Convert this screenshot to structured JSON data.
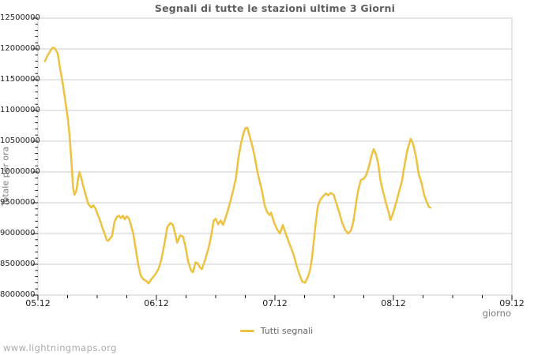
{
  "page": {
    "watermark": "www.lightningmaps.org"
  },
  "colors": {
    "line": "#edc240",
    "grid": "#cccccc",
    "tick": "#1a1a1a",
    "tick_label": "#222222",
    "title": "#5f5f5f",
    "axis_title": "#7a7a7a",
    "legend_text": "#666666",
    "watermark": "#aaaaaa"
  },
  "chart_data": {
    "type": "line",
    "title": "Segnali di tutte le stazioni ultime 3 Giorni",
    "xlabel": "giorno",
    "ylabel": "Totale per ora",
    "grid": "horizontal-only",
    "legend_position": "bottom-center",
    "xlim_hours": [
      0,
      96
    ],
    "ylim": [
      8000000,
      12500000
    ],
    "x_ticks": [
      {
        "t": 0,
        "label": "05.12"
      },
      {
        "t": 24,
        "label": "06.12"
      },
      {
        "t": 48,
        "label": "07.12"
      },
      {
        "t": 72,
        "label": "08.12"
      },
      {
        "t": 96,
        "label": "09.12"
      }
    ],
    "x_minor_step_hours": 6,
    "y_ticks": [
      8000000,
      8500000,
      9000000,
      9500000,
      10000000,
      10500000,
      11000000,
      11500000,
      12000000,
      12500000
    ],
    "y_minor_step": 100000,
    "series": [
      {
        "name": "Tutti segnali",
        "color": "#edc240",
        "points_t_hours_value": [
          [
            1.4,
            11800000
          ],
          [
            2,
            11900000
          ],
          [
            2.6,
            11980000
          ],
          [
            3,
            12020000
          ],
          [
            3.4,
            12010000
          ],
          [
            4,
            11930000
          ],
          [
            4.5,
            11680000
          ],
          [
            5,
            11450000
          ],
          [
            5.5,
            11180000
          ],
          [
            6,
            10900000
          ],
          [
            6.4,
            10600000
          ],
          [
            6.8,
            10150000
          ],
          [
            7.1,
            9750000
          ],
          [
            7.4,
            9630000
          ],
          [
            7.8,
            9700000
          ],
          [
            8.1,
            9870000
          ],
          [
            8.4,
            10000000
          ],
          [
            8.8,
            9900000
          ],
          [
            9.1,
            9790000
          ],
          [
            9.7,
            9620000
          ],
          [
            10.2,
            9480000
          ],
          [
            10.8,
            9420000
          ],
          [
            11.2,
            9460000
          ],
          [
            11.7,
            9400000
          ],
          [
            12.1,
            9310000
          ],
          [
            12.6,
            9210000
          ],
          [
            13.1,
            9080000
          ],
          [
            13.5,
            9000000
          ],
          [
            13.9,
            8900000
          ],
          [
            14.2,
            8880000
          ],
          [
            15,
            8960000
          ],
          [
            15.5,
            9190000
          ],
          [
            16,
            9270000
          ],
          [
            16.4,
            9290000
          ],
          [
            16.8,
            9250000
          ],
          [
            17.2,
            9290000
          ],
          [
            17.6,
            9230000
          ],
          [
            18,
            9280000
          ],
          [
            18.4,
            9250000
          ],
          [
            18.8,
            9150000
          ],
          [
            19.3,
            9000000
          ],
          [
            19.8,
            8750000
          ],
          [
            20.3,
            8500000
          ],
          [
            20.8,
            8320000
          ],
          [
            21.3,
            8260000
          ],
          [
            21.9,
            8230000
          ],
          [
            22.4,
            8190000
          ],
          [
            23,
            8260000
          ],
          [
            23.8,
            8340000
          ],
          [
            24.4,
            8420000
          ],
          [
            25,
            8580000
          ],
          [
            25.6,
            8820000
          ],
          [
            26.2,
            9100000
          ],
          [
            26.8,
            9170000
          ],
          [
            27.3,
            9150000
          ],
          [
            27.8,
            8990000
          ],
          [
            28.2,
            8850000
          ],
          [
            28.8,
            8970000
          ],
          [
            29.4,
            8950000
          ],
          [
            29.9,
            8780000
          ],
          [
            30.4,
            8550000
          ],
          [
            31,
            8400000
          ],
          [
            31.4,
            8370000
          ],
          [
            31.9,
            8530000
          ],
          [
            32.3,
            8520000
          ],
          [
            32.8,
            8450000
          ],
          [
            33.2,
            8420000
          ],
          [
            33.9,
            8580000
          ],
          [
            34.6,
            8780000
          ],
          [
            35.1,
            8970000
          ],
          [
            35.6,
            9210000
          ],
          [
            36,
            9240000
          ],
          [
            36.5,
            9150000
          ],
          [
            37,
            9210000
          ],
          [
            37.5,
            9140000
          ],
          [
            38.3,
            9330000
          ],
          [
            39,
            9530000
          ],
          [
            39.6,
            9720000
          ],
          [
            40.1,
            9900000
          ],
          [
            40.6,
            10230000
          ],
          [
            41.1,
            10450000
          ],
          [
            41.6,
            10620000
          ],
          [
            42,
            10710000
          ],
          [
            42.4,
            10720000
          ],
          [
            42.9,
            10580000
          ],
          [
            43.4,
            10430000
          ],
          [
            43.9,
            10250000
          ],
          [
            44.4,
            10020000
          ],
          [
            44.9,
            9850000
          ],
          [
            45.4,
            9680000
          ],
          [
            45.9,
            9460000
          ],
          [
            46.4,
            9350000
          ],
          [
            46.9,
            9300000
          ],
          [
            47.2,
            9340000
          ],
          [
            47.9,
            9160000
          ],
          [
            48.5,
            9060000
          ],
          [
            49,
            9000000
          ],
          [
            49.6,
            9140000
          ],
          [
            50.3,
            8970000
          ],
          [
            51.2,
            8780000
          ],
          [
            51.8,
            8650000
          ],
          [
            52.3,
            8500000
          ],
          [
            52.9,
            8350000
          ],
          [
            53.5,
            8220000
          ],
          [
            54.1,
            8200000
          ],
          [
            54.7,
            8300000
          ],
          [
            55.1,
            8400000
          ],
          [
            55.5,
            8600000
          ],
          [
            55.9,
            8900000
          ],
          [
            56.3,
            9200000
          ],
          [
            56.7,
            9450000
          ],
          [
            57.2,
            9550000
          ],
          [
            57.8,
            9610000
          ],
          [
            58.3,
            9650000
          ],
          [
            58.8,
            9620000
          ],
          [
            59.3,
            9660000
          ],
          [
            59.9,
            9630000
          ],
          [
            60.4,
            9500000
          ],
          [
            61,
            9350000
          ],
          [
            61.6,
            9180000
          ],
          [
            62.2,
            9060000
          ],
          [
            62.8,
            9000000
          ],
          [
            63.4,
            9050000
          ],
          [
            63.9,
            9200000
          ],
          [
            64.3,
            9420000
          ],
          [
            64.8,
            9680000
          ],
          [
            65.4,
            9870000
          ],
          [
            66,
            9890000
          ],
          [
            66.5,
            9950000
          ],
          [
            67,
            10080000
          ],
          [
            67.6,
            10280000
          ],
          [
            68,
            10370000
          ],
          [
            68.4,
            10300000
          ],
          [
            68.9,
            10150000
          ],
          [
            69.4,
            9850000
          ],
          [
            69.9,
            9680000
          ],
          [
            70.4,
            9520000
          ],
          [
            71,
            9350000
          ],
          [
            71.4,
            9220000
          ],
          [
            72,
            9350000
          ],
          [
            72.6,
            9520000
          ],
          [
            73.1,
            9670000
          ],
          [
            73.7,
            9840000
          ],
          [
            74.2,
            10090000
          ],
          [
            74.8,
            10350000
          ],
          [
            75.5,
            10540000
          ],
          [
            76,
            10450000
          ],
          [
            76.6,
            10230000
          ],
          [
            77.1,
            9970000
          ],
          [
            77.7,
            9820000
          ],
          [
            78.2,
            9630000
          ],
          [
            78.7,
            9520000
          ],
          [
            79.2,
            9430000
          ],
          [
            79.5,
            9420000
          ]
        ]
      }
    ]
  }
}
